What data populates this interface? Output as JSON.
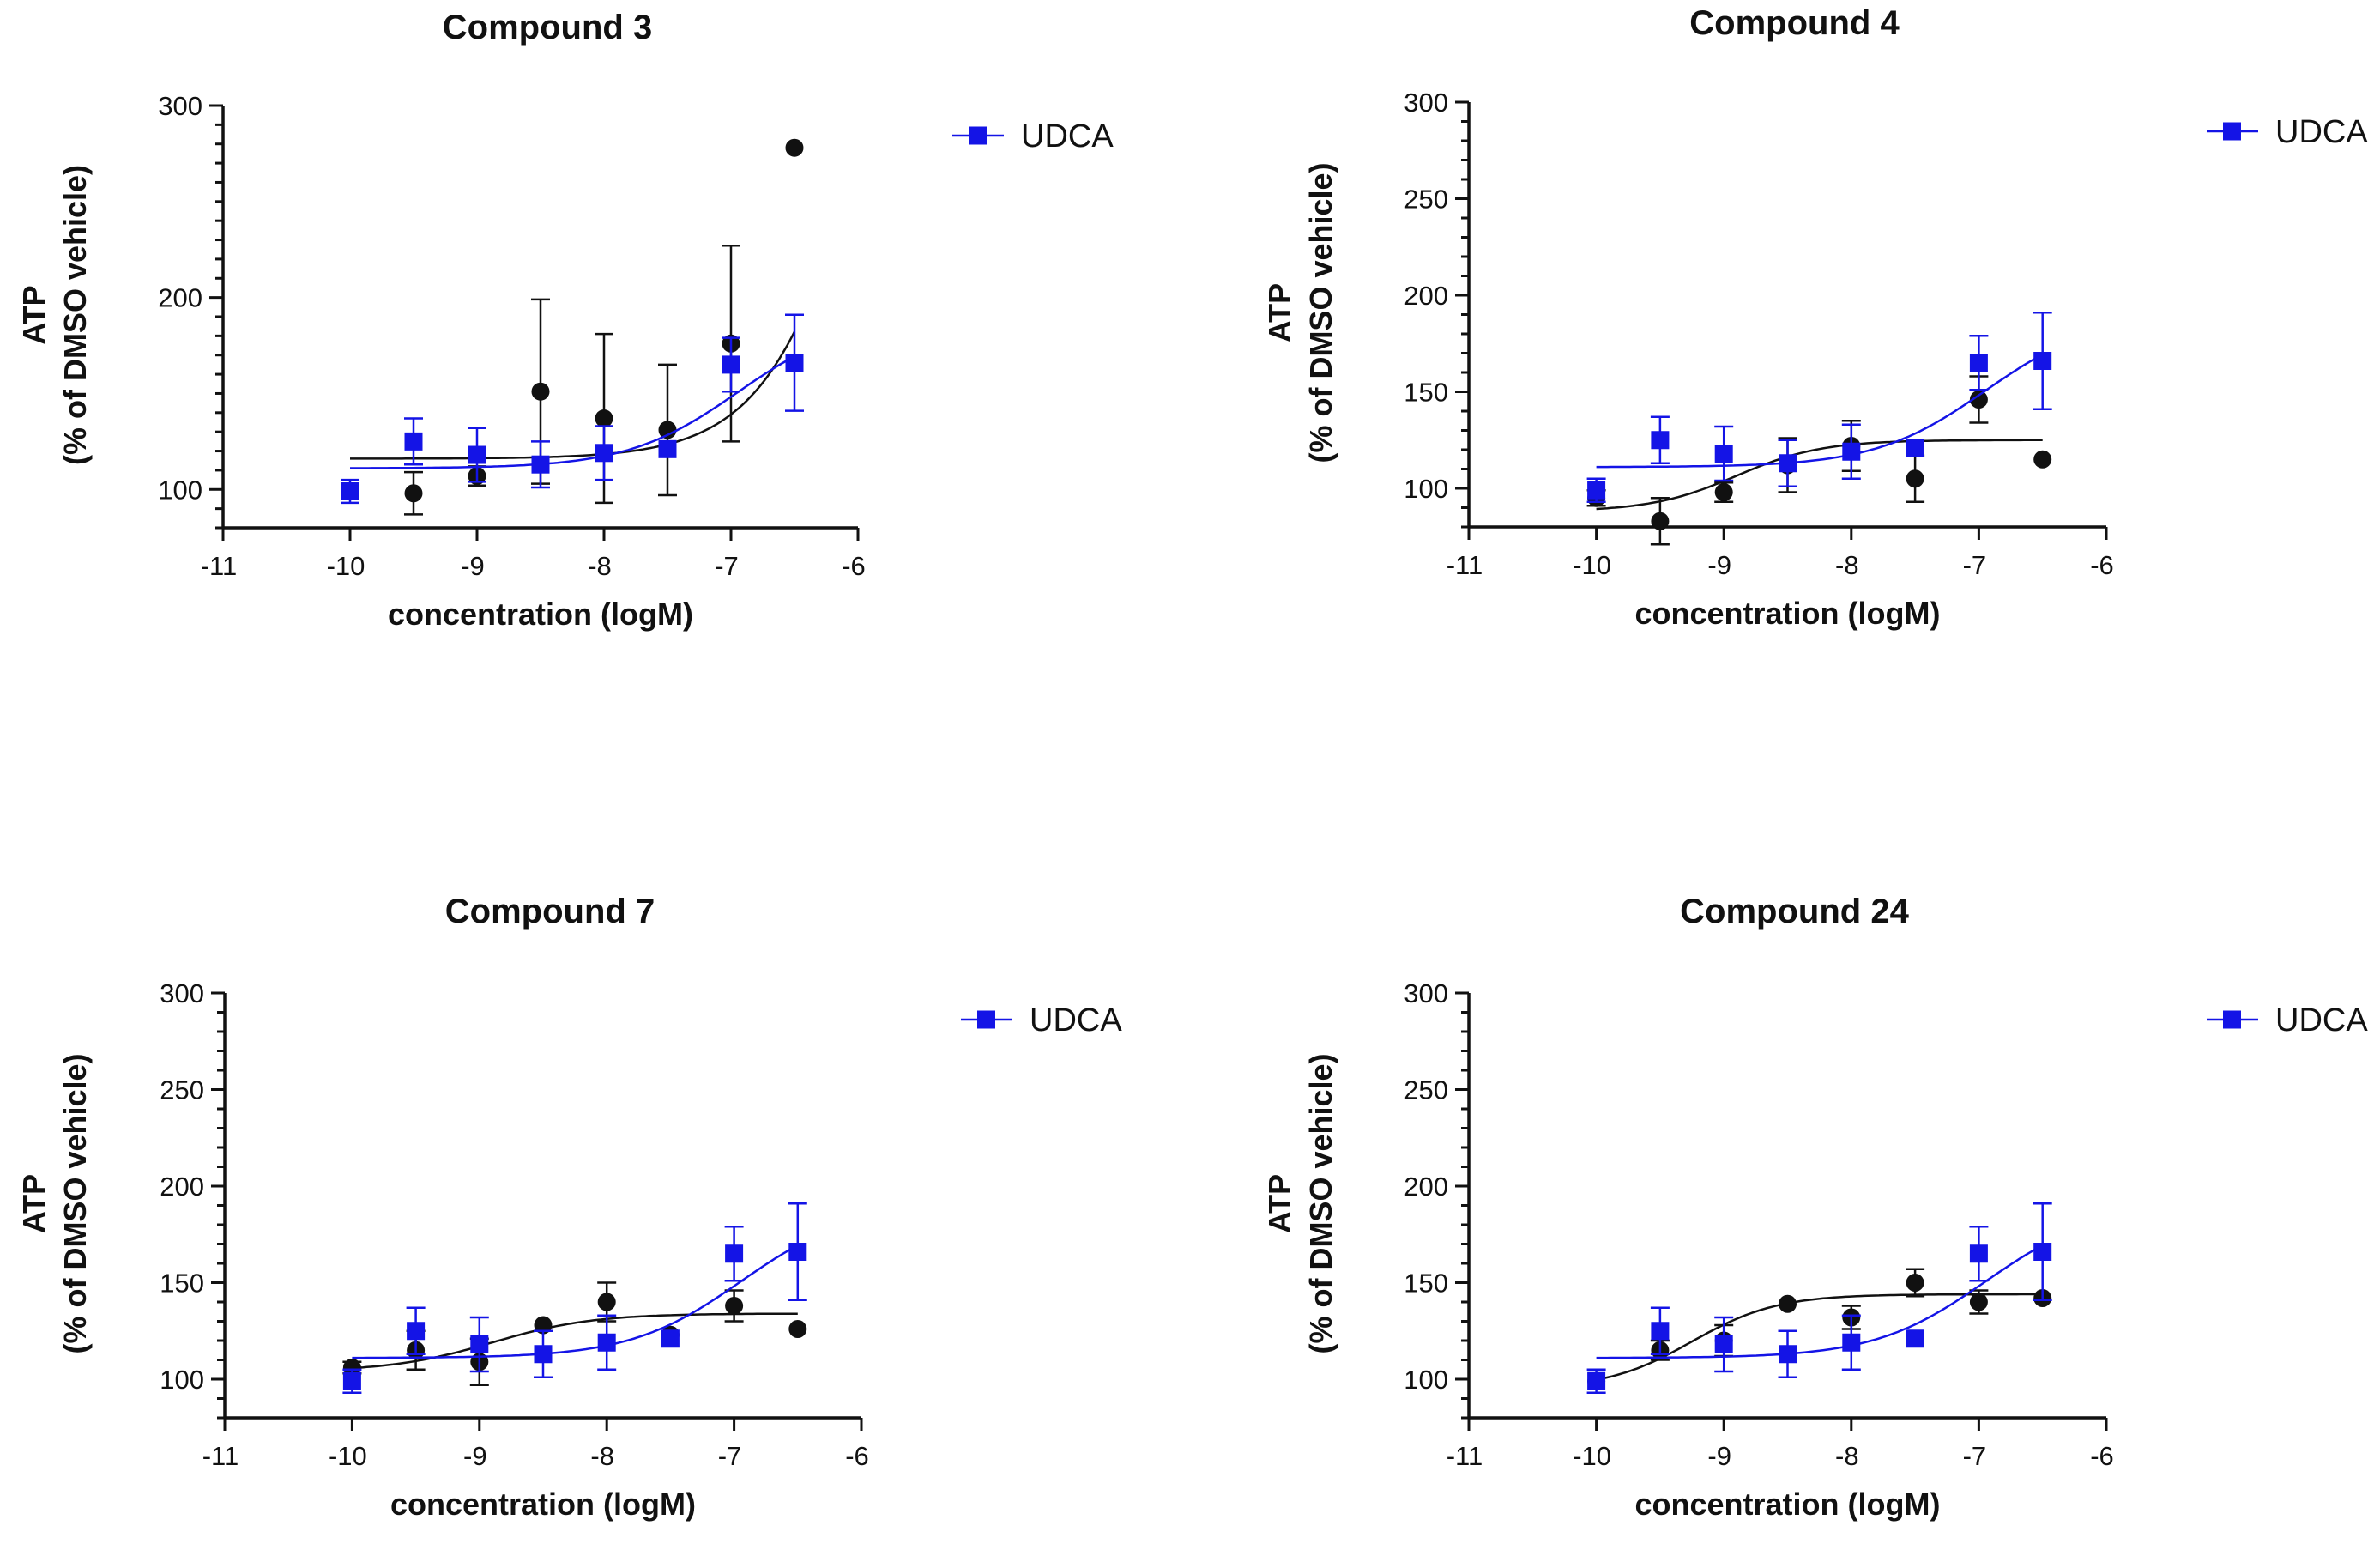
{
  "chart_data": [
    {
      "type": "scatter",
      "title": "Compound 3",
      "xlabel": "concentration (logM)",
      "ylabel": [
        "ATP",
        "(% of  DMSO vehicle)"
      ],
      "xlim": [
        -11,
        -6
      ],
      "ylim": [
        80,
        300
      ],
      "xticks": [
        -11,
        -10,
        -9,
        -8,
        -7,
        -6
      ],
      "yticks": [
        100,
        200,
        300
      ],
      "ytick_labels": [
        "100",
        "200",
        "300"
      ],
      "legend": [
        "UDCA"
      ],
      "series": [
        {
          "name": "Compound 3",
          "marker": "circle",
          "color": "#111111",
          "x": [
            -10,
            -9.5,
            -9,
            -8.5,
            -8,
            -7.5,
            -7,
            -6.5
          ],
          "y": [
            99,
            98,
            107,
            151,
            137,
            131,
            176,
            278
          ],
          "err": [
            0,
            11,
            5,
            48,
            44,
            34,
            51,
            0
          ],
          "fit": {
            "bottom": 116,
            "top": 600,
            "logEC50": -5.7,
            "hill": 1
          }
        },
        {
          "name": "UDCA",
          "marker": "square",
          "color": "#1414e6",
          "x": [
            -10,
            -9.5,
            -9,
            -8.5,
            -8,
            -7.5,
            -7,
            -6.5
          ],
          "y": [
            99,
            125,
            118,
            113,
            119,
            121,
            165,
            166
          ],
          "err": [
            6,
            12,
            14,
            12,
            14,
            0,
            14,
            25
          ],
          "fit": {
            "bottom": 111,
            "top": 190,
            "logEC50": -6.95,
            "hill": 1
          }
        }
      ]
    },
    {
      "type": "scatter",
      "title": "Compound 4",
      "xlabel": "concentration (logM)",
      "ylabel": [
        "ATP",
        "(% of  DMSO vehicle)"
      ],
      "xlim": [
        -11,
        -6
      ],
      "ylim": [
        80,
        300
      ],
      "xticks": [
        -11,
        -10,
        -9,
        -8,
        -7,
        -6
      ],
      "yticks": [
        100,
        150,
        200,
        250,
        300
      ],
      "ytick_labels": [
        "100",
        "150",
        "200",
        "250",
        "300"
      ],
      "legend": [
        "UDCA"
      ],
      "series": [
        {
          "name": "Compound 4",
          "marker": "circle",
          "color": "#111111",
          "x": [
            -10,
            -9.5,
            -9,
            -8.5,
            -8,
            -7.5,
            -7,
            -6.5
          ],
          "y": [
            95,
            83,
            98,
            112,
            122,
            105,
            146,
            115
          ],
          "err": [
            4,
            12,
            5,
            14,
            13,
            12,
            12,
            0
          ],
          "fit": {
            "bottom": 88,
            "top": 125,
            "logEC50": -8.9,
            "hill": 1.3
          }
        },
        {
          "name": "UDCA",
          "marker": "square",
          "color": "#1414e6",
          "x": [
            -10,
            -9.5,
            -9,
            -8.5,
            -8,
            -7.5,
            -7,
            -6.5
          ],
          "y": [
            99,
            125,
            118,
            113,
            119,
            121,
            165,
            166
          ],
          "err": [
            6,
            12,
            14,
            12,
            14,
            0,
            14,
            25
          ],
          "fit": {
            "bottom": 111,
            "top": 190,
            "logEC50": -6.95,
            "hill": 1
          }
        }
      ]
    },
    {
      "type": "scatter",
      "title": "Compound 7",
      "xlabel": "concentration (logM)",
      "ylabel": [
        "ATP",
        "(% of  DMSO vehicle)"
      ],
      "xlim": [
        -11,
        -6
      ],
      "ylim": [
        80,
        300
      ],
      "xticks": [
        -11,
        -10,
        -9,
        -8,
        -7,
        -6
      ],
      "yticks": [
        100,
        150,
        200,
        250,
        300
      ],
      "ytick_labels": [
        "100",
        "150",
        "200",
        "250",
        "300"
      ],
      "legend": [
        "UDCA"
      ],
      "series": [
        {
          "name": "Compound 7",
          "marker": "circle",
          "color": "#111111",
          "x": [
            -10,
            -9.5,
            -9,
            -8.5,
            -8,
            -7.5,
            -7,
            -6.5
          ],
          "y": [
            106,
            115,
            109,
            128,
            140,
            123,
            138,
            126
          ],
          "err": [
            3,
            10,
            12,
            0,
            10,
            0,
            8,
            0
          ],
          "fit": {
            "bottom": 104,
            "top": 134,
            "logEC50": -8.9,
            "hill": 1.1
          }
        },
        {
          "name": "UDCA",
          "marker": "square",
          "color": "#1414e6",
          "x": [
            -10,
            -9.5,
            -9,
            -8.5,
            -8,
            -7.5,
            -7,
            -6.5
          ],
          "y": [
            99,
            125,
            118,
            113,
            119,
            121,
            165,
            166
          ],
          "err": [
            6,
            12,
            14,
            12,
            14,
            0,
            14,
            25
          ],
          "fit": {
            "bottom": 111,
            "top": 190,
            "logEC50": -6.95,
            "hill": 1
          }
        }
      ]
    },
    {
      "type": "scatter",
      "title": "Compound 24",
      "xlabel": "concentration (logM)",
      "ylabel": [
        "ATP",
        "(% of  DMSO vehicle)"
      ],
      "xlim": [
        -11,
        -6
      ],
      "ylim": [
        80,
        300
      ],
      "xticks": [
        -11,
        -10,
        -9,
        -8,
        -7,
        -6
      ],
      "yticks": [
        100,
        150,
        200,
        250,
        300
      ],
      "ytick_labels": [
        "100",
        "150",
        "200",
        "250",
        "300"
      ],
      "legend": [
        "UDCA"
      ],
      "series": [
        {
          "name": "Compound 24",
          "marker": "circle",
          "color": "#111111",
          "x": [
            -10,
            -9.5,
            -9,
            -8.5,
            -8,
            -7.5,
            -7,
            -6.5
          ],
          "y": [
            99,
            115,
            120,
            139,
            132,
            150,
            140,
            142
          ],
          "err": [
            0,
            5,
            8,
            0,
            6,
            7,
            6,
            0
          ],
          "fit": {
            "bottom": 95,
            "top": 144,
            "logEC50": -9.25,
            "hill": 1.3
          }
        },
        {
          "name": "UDCA",
          "marker": "square",
          "color": "#1414e6",
          "x": [
            -10,
            -9.5,
            -9,
            -8.5,
            -8,
            -7.5,
            -7,
            -6.5
          ],
          "y": [
            99,
            125,
            118,
            113,
            119,
            121,
            165,
            166
          ],
          "err": [
            6,
            12,
            14,
            12,
            14,
            0,
            14,
            25
          ],
          "fit": {
            "bottom": 111,
            "top": 190,
            "logEC50": -6.95,
            "hill": 1
          }
        }
      ]
    }
  ]
}
